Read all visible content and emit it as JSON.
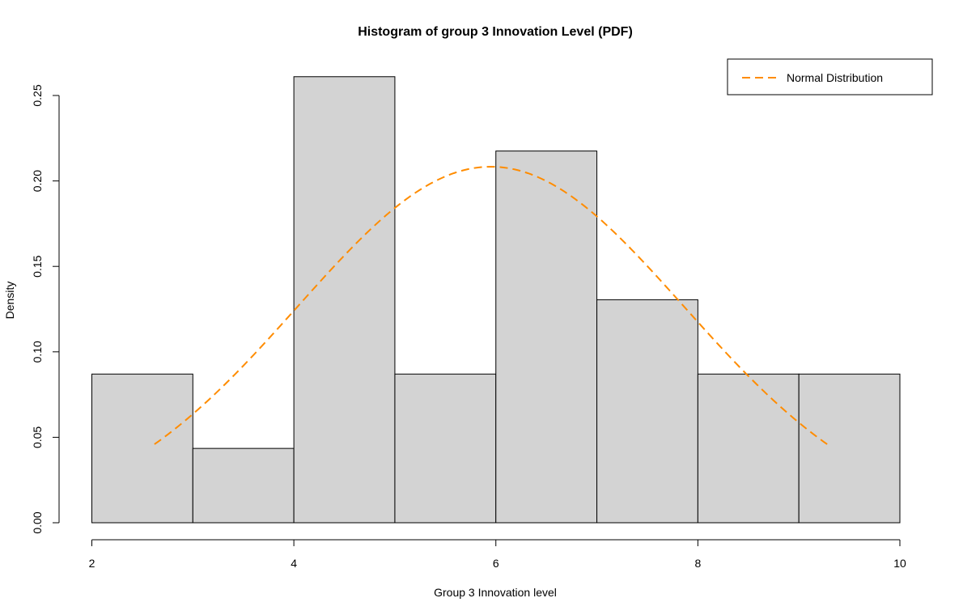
{
  "chart_data": {
    "type": "bar",
    "title": "Histogram of group 3 Innovation Level (PDF)",
    "xlabel": "Group 3 Innovation level",
    "ylabel": "Density",
    "xlim": [
      2,
      10
    ],
    "ylim": [
      0,
      0.26
    ],
    "x_ticks": [
      2,
      4,
      6,
      8,
      10
    ],
    "x_tick_labels": [
      "2",
      "4",
      "6",
      "8",
      "10"
    ],
    "y_ticks": [
      0,
      0.05,
      0.1,
      0.15,
      0.2,
      0.25
    ],
    "y_tick_labels": [
      "0.00",
      "0.05",
      "0.10",
      "0.15",
      "0.20",
      "0.25"
    ],
    "bins": [
      {
        "x0": 2,
        "x1": 3,
        "density": 0.087
      },
      {
        "x0": 3,
        "x1": 4,
        "density": 0.0435
      },
      {
        "x0": 4,
        "x1": 5,
        "density": 0.261
      },
      {
        "x0": 5,
        "x1": 6,
        "density": 0.087
      },
      {
        "x0": 6,
        "x1": 7,
        "density": 0.2175
      },
      {
        "x0": 7,
        "x1": 8,
        "density": 0.1305
      },
      {
        "x0": 8,
        "x1": 9,
        "density": 0.087
      },
      {
        "x0": 9,
        "x1": 10,
        "density": 0.087
      }
    ],
    "bar_fill": "#d3d3d3",
    "bar_stroke": "#000000",
    "curve": {
      "name": "Normal Distribution",
      "mean": 5.95,
      "sd": 1.915,
      "x_range": [
        2.62,
        9.28
      ],
      "color": "#ff8c00",
      "style": "dashed"
    },
    "legend_placement": "top-right"
  }
}
